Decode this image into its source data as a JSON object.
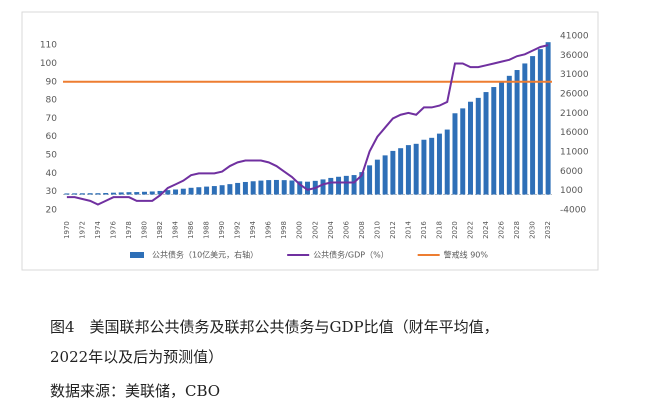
{
  "chart_data": {
    "type": "bar_line",
    "categories": [
      "1970",
      null,
      "1972",
      null,
      "1974",
      null,
      "1976",
      null,
      "1978",
      null,
      "1980",
      null,
      "1982",
      null,
      "1984",
      null,
      "1986",
      null,
      "1988",
      null,
      "1990",
      null,
      "1992",
      null,
      "1994",
      null,
      "1996",
      null,
      "1998",
      null,
      "2000",
      null,
      "2002",
      null,
      "2004",
      null,
      "2006",
      null,
      "2008",
      null,
      "2010",
      null,
      "2012",
      null,
      "2014",
      null,
      "2016",
      null,
      "2018",
      null,
      "2020",
      null,
      "2022",
      null,
      "2024",
      null,
      "2026",
      null,
      "2028",
      null,
      "2030",
      null,
      "2032"
    ],
    "series": [
      {
        "name": "公共债务（10亿美元，右轴）",
        "color": "#2e6fb7",
        "kind": "bar",
        "axis": "y2",
        "values": [
          283,
          303,
          322,
          341,
          344,
          395,
          477,
          549,
          607,
          640,
          712,
          789,
          925,
          1137,
          1307,
          1507,
          1741,
          1890,
          2052,
          2191,
          2412,
          2689,
          3000,
          3248,
          3433,
          3604,
          3734,
          3772,
          3721,
          3632,
          3410,
          3320,
          3540,
          3913,
          4296,
          4592,
          4829,
          5035,
          5803,
          7545,
          9019,
          10128,
          11281,
          11983,
          12780,
          13117,
          14168,
          14665,
          15750,
          16801,
          21017,
          22284,
          24000,
          25000,
          26500,
          27800,
          29000,
          30700,
          32200,
          33900,
          35800,
          37600,
          39400
        ]
      },
      {
        "name": "公共债务/GDP（%）",
        "color": "#7030a0",
        "kind": "line",
        "values": [
          27,
          27,
          26,
          25,
          23,
          25,
          27,
          27,
          27,
          25,
          25,
          25,
          28,
          32,
          34,
          36,
          39,
          40,
          40,
          40,
          41,
          44,
          46,
          47,
          47,
          47,
          46,
          44,
          41,
          38,
          34,
          31,
          32,
          34,
          35,
          35,
          35,
          35,
          39,
          52,
          60,
          65,
          70,
          72,
          73,
          72,
          76,
          76,
          77,
          79,
          100,
          100,
          98,
          98,
          99,
          100,
          101,
          102,
          104,
          105,
          107,
          109,
          110
        ]
      }
    ],
    "threshold": {
      "name": "警戒线 90%",
      "value": 90,
      "color": "#ed7d31"
    },
    "ylim": [
      20,
      115
    ],
    "yticks": [
      20,
      30,
      40,
      50,
      60,
      70,
      80,
      90,
      100,
      110
    ],
    "y2lim": [
      -4000,
      41000
    ],
    "y2ticks": [
      -4000,
      1000,
      6000,
      11000,
      16000,
      21000,
      26000,
      31000,
      36000,
      41000
    ],
    "caption": [
      "图4　美国联邦公共债务及联邦公共债务与GDP比值（财年平均值，",
      "2022年以及后为预测值）"
    ],
    "source": "数据来源：美联储，CBO"
  }
}
